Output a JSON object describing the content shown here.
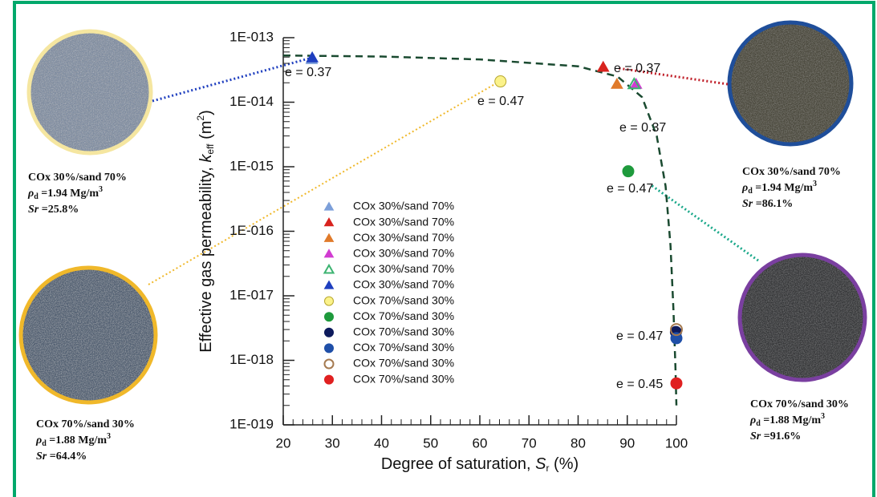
{
  "chart_data": {
    "type": "scatter",
    "ylabel": {
      "text": "Effective gas permeability, ",
      "var": "k",
      "sub": "eff",
      "unit": " (m",
      "sup": "2",
      "close": ")"
    },
    "xlabel": {
      "text": "Degree of saturation, ",
      "var": "S",
      "sub": "r",
      "unit": " (%)"
    },
    "xlim": [
      20,
      100
    ],
    "xticks": [
      20,
      30,
      40,
      50,
      60,
      70,
      80,
      90,
      100
    ],
    "ylim": [
      1e-19,
      1e-13
    ],
    "log_y": true,
    "yticks": [
      {
        "value": 1e-19,
        "label": "1E-019"
      },
      {
        "value": 1e-18,
        "label": "1E-018"
      },
      {
        "value": 1e-17,
        "label": "1E-017"
      },
      {
        "value": 1e-16,
        "label": "1E-016"
      },
      {
        "value": 1e-15,
        "label": "1E-015"
      },
      {
        "value": 1e-14,
        "label": "1E-014"
      },
      {
        "value": 1e-13,
        "label": "1E-013"
      }
    ],
    "series": [
      {
        "name": "COx 30%/sand 70%",
        "marker": "triangle",
        "filled": true,
        "color": "#7c9fd9",
        "x": [
          25.8
        ],
        "values": [
          4.6e-14
        ]
      },
      {
        "name": "COx 30%/sand 70%",
        "marker": "triangle",
        "filled": true,
        "color": "#d8231e",
        "x": [
          85.1
        ],
        "values": [
          3.5e-14
        ]
      },
      {
        "name": "COx 30%/sand 70%",
        "marker": "triangle",
        "filled": true,
        "color": "#e07a2a",
        "x": [
          87.9
        ],
        "values": [
          1.9e-14
        ]
      },
      {
        "name": "COx 30%/sand 70%",
        "marker": "triangle",
        "filled": true,
        "color": "#d13cd1",
        "x": [
          91.8
        ],
        "values": [
          1.9e-14
        ]
      },
      {
        "name": "COx 30%/sand 70%",
        "marker": "triangle",
        "filled": false,
        "color": "#3cb371",
        "x": [
          91.4
        ],
        "values": [
          1.9e-14
        ]
      },
      {
        "name": "COx 30%/sand 70%",
        "marker": "triangle",
        "filled": true,
        "color": "#1f3fbf",
        "x": [
          25.9
        ],
        "values": [
          4.9e-14
        ]
      },
      {
        "name": "COx 70%/sand 30%",
        "marker": "circle",
        "filled": true,
        "color": "#fbf28a",
        "x": [
          64.2
        ],
        "values": [
          2.1e-14
        ]
      },
      {
        "name": "COx 70%/sand 30%",
        "marker": "circle",
        "filled": true,
        "color": "#1e9a3c",
        "x": [
          90.2
        ],
        "values": [
          8.5e-16
        ]
      },
      {
        "name": "COx 70%/sand 30%",
        "marker": "circle",
        "filled": true,
        "color": "#0d1a5c",
        "x": [
          99.9
        ],
        "values": [
          2.75e-18
        ]
      },
      {
        "name": "COx 70%/sand 30%",
        "marker": "circle",
        "filled": true,
        "color": "#1f4fa8",
        "x": [
          100
        ],
        "values": [
          2.2e-18
        ]
      },
      {
        "name": "COx 70%/sand 30%",
        "marker": "circle",
        "filled": false,
        "color": "#a57a50",
        "x": [
          100
        ],
        "values": [
          3e-18
        ]
      },
      {
        "name": "COx 70%/sand 30%",
        "marker": "circle",
        "filled": true,
        "color": "#e02020",
        "x": [
          100
        ],
        "values": [
          4.4e-19
        ]
      }
    ],
    "fit_curve": {
      "color": "#1a4a30",
      "x": [
        20,
        40,
        60,
        80,
        88,
        93,
        96,
        97.8,
        98.8,
        99.4,
        99.8,
        100
      ],
      "values": [
        5.3e-14,
        5.1e-14,
        4.6e-14,
        3.6e-14,
        2.5e-14,
        1.2e-14,
        3e-15,
        5e-16,
        6e-17,
        6e-18,
        8e-19,
        2e-19
      ]
    },
    "annotations": [
      "e = 0.37",
      "e = 0.47",
      "e = 0.37",
      "e = 0.37",
      "e = 0.47",
      "e = 0.47",
      "e = 0.45"
    ]
  },
  "samples": [
    {
      "title": "COx 30%/sand 70%",
      "color": "#f5e6a0",
      "rho": "ρ",
      "rho_sub": "d",
      "rho_value": " =1.94 Mg/m",
      "rho_sup": "3",
      "sr": "Sr",
      "sr_value": " =25.8%"
    },
    {
      "title": "COx 70%/sand 30%",
      "color": "#f0b82a",
      "rho": "ρ",
      "rho_sub": "d",
      "rho_value": " =1.88 Mg/m",
      "rho_sup": "3",
      "sr": "Sr",
      "sr_value": " =64.4%"
    },
    {
      "title": "COx 30%/sand 70%",
      "color": "#1f4e9a",
      "rho": "ρ",
      "rho_sub": "d",
      "rho_value": " =1.94 Mg/m",
      "rho_sup": "3",
      "sr": "Sr",
      "sr_value": " =86.1%"
    },
    {
      "title": "COx 70%/sand 30%",
      "color": "#7a3fa0",
      "rho": "ρ",
      "rho_sub": "d",
      "rho_value": " =1.88 Mg/m",
      "rho_sup": "3",
      "sr": "Sr",
      "sr_value": " =91.6%"
    }
  ]
}
